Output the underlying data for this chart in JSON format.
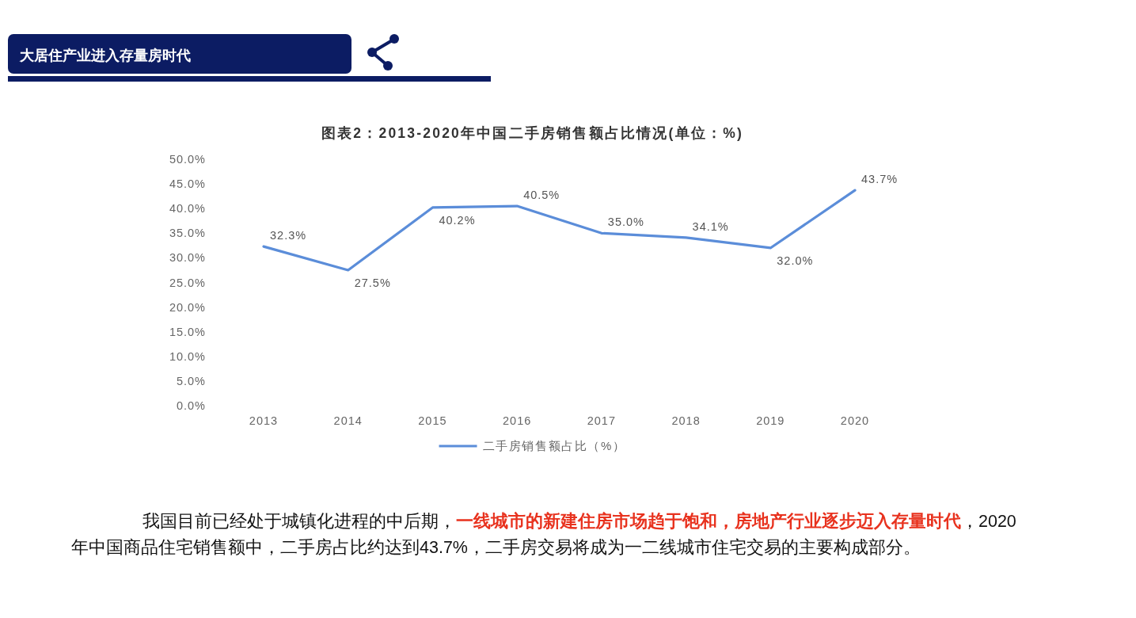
{
  "chart_data": {
    "type": "line",
    "title": "图表2：2013-2020年中国二手房销售额占比情况(单位：%)",
    "categories": [
      "2013",
      "2014",
      "2015",
      "2016",
      "2017",
      "2018",
      "2019",
      "2020"
    ],
    "series": [
      {
        "name": "二手房销售额占比（%）",
        "color": "#5b8dd9",
        "values": [
          32.3,
          27.5,
          40.2,
          40.5,
          35.0,
          34.1,
          32.0,
          43.7
        ],
        "value_labels": [
          "32.3%",
          "27.5%",
          "40.2%",
          "40.5%",
          "35.0%",
          "34.1%",
          "32.0%",
          "43.7%"
        ]
      }
    ],
    "ylim": [
      0,
      50
    ],
    "yticks": [
      {
        "value": 0,
        "label": "0.0%"
      },
      {
        "value": 5,
        "label": "5.0%"
      },
      {
        "value": 10,
        "label": "10.0%"
      },
      {
        "value": 15,
        "label": "15.0%"
      },
      {
        "value": 20,
        "label": "20.0%"
      },
      {
        "value": 25,
        "label": "25.0%"
      },
      {
        "value": 30,
        "label": "30.0%"
      },
      {
        "value": 35,
        "label": "35.0%"
      },
      {
        "value": 40,
        "label": "40.0%"
      },
      {
        "value": 45,
        "label": "45.0%"
      },
      {
        "value": 50,
        "label": "50.0%"
      }
    ],
    "legend": "bottom",
    "annotations": [
      "大居住产业进入存量房时代",
      "我国目前已经处于城镇化进程的中后期，**一线城市的新建住房市场趋于饱和，房地产行业逐步迈入存量时代**，2020年中国商品住宅销售额中，二手房占比约达到43.7%，二手房交易将成为一二线城市住宅交易的主要构成部分。"
    ]
  }
}
